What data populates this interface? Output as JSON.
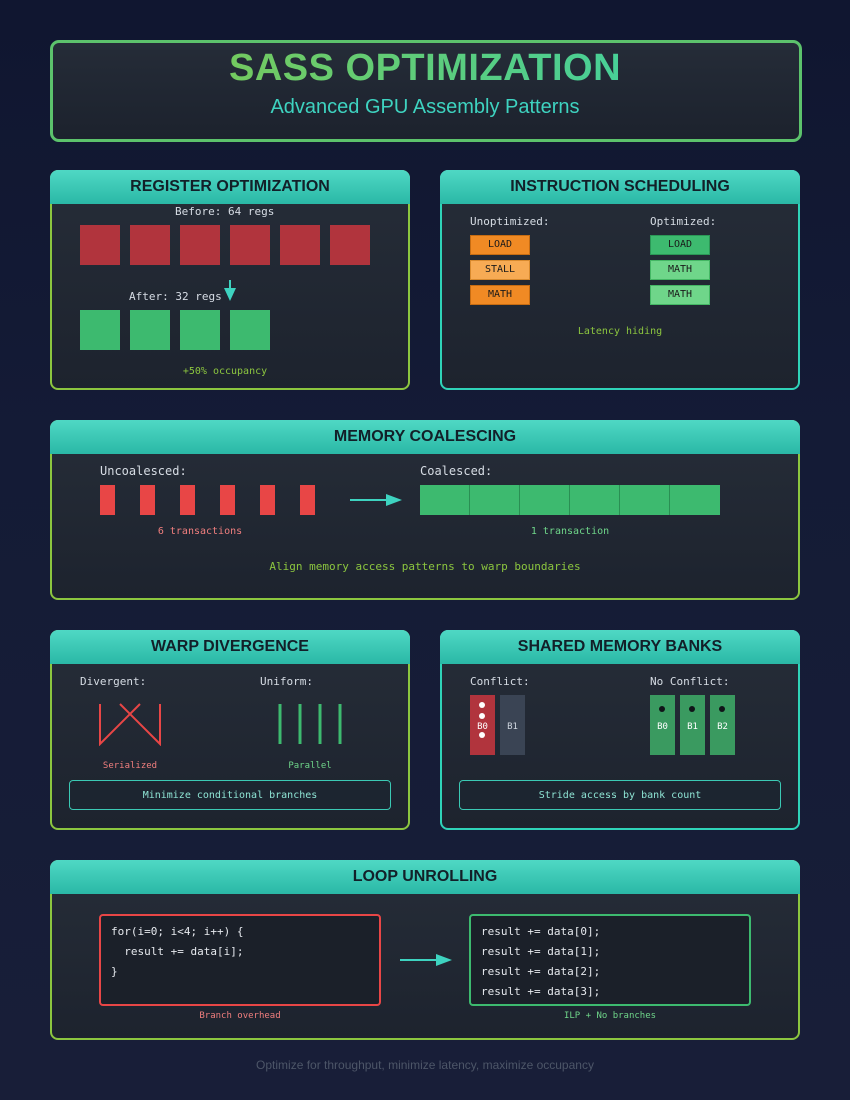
{
  "header": {
    "title": "SASS OPTIMIZATION",
    "subtitle": "Advanced GPU Assembly Patterns"
  },
  "register_panel": {
    "title": "REGISTER OPTIMIZATION",
    "before_label": "Before: 64 regs",
    "after_label": "After: 32 regs",
    "result": "+50% occupancy"
  },
  "scheduling_panel": {
    "title": "INSTRUCTION SCHEDULING",
    "unoptimized_label": "Unoptimized:",
    "optimized_label": "Optimized:",
    "unoptimized": [
      "LOAD",
      "STALL",
      "MATH"
    ],
    "optimized": [
      "LOAD",
      "MATH",
      "MATH"
    ],
    "note": "Latency hiding"
  },
  "coalescing_panel": {
    "title": "MEMORY COALESCING",
    "uncoalesced_label": "Uncoalesced:",
    "coalesced_label": "Coalesced:",
    "uncoalesced_note": "6 transactions",
    "coalesced_note": "1 transaction",
    "tip": "Align memory access patterns to warp boundaries"
  },
  "divergence_panel": {
    "title": "WARP DIVERGENCE",
    "divergent_label": "Divergent:",
    "uniform_label": "Uniform:",
    "divergent_note": "Serialized",
    "uniform_note": "Parallel",
    "tip": "Minimize conditional branches"
  },
  "banks_panel": {
    "title": "SHARED MEMORY BANKS",
    "conflict_label": "Conflict:",
    "no_conflict_label": "No Conflict:",
    "conflict_banks": [
      "B0",
      "B1"
    ],
    "no_conflict_banks": [
      "B0",
      "B1",
      "B2"
    ],
    "tip": "Stride access by bank count"
  },
  "unrolling_panel": {
    "title": "LOOP UNROLLING",
    "loop_code": [
      "for(i=0; i<4; i++) {",
      "  result += data[i];",
      "}"
    ],
    "unrolled_code": [
      "result += data[0];",
      "result += data[1];",
      "result += data[2];",
      "result += data[3];"
    ],
    "loop_note": "Branch overhead",
    "unrolled_note": "ILP + No branches"
  },
  "footer": "Optimize for throughput, minimize latency, maximize occupancy",
  "colors": {
    "accent_green": "#8cc63f",
    "accent_teal": "#2fd3b8",
    "bad_red": "#e84646",
    "good_green": "#3dba6f",
    "orange": "#f08a24"
  }
}
